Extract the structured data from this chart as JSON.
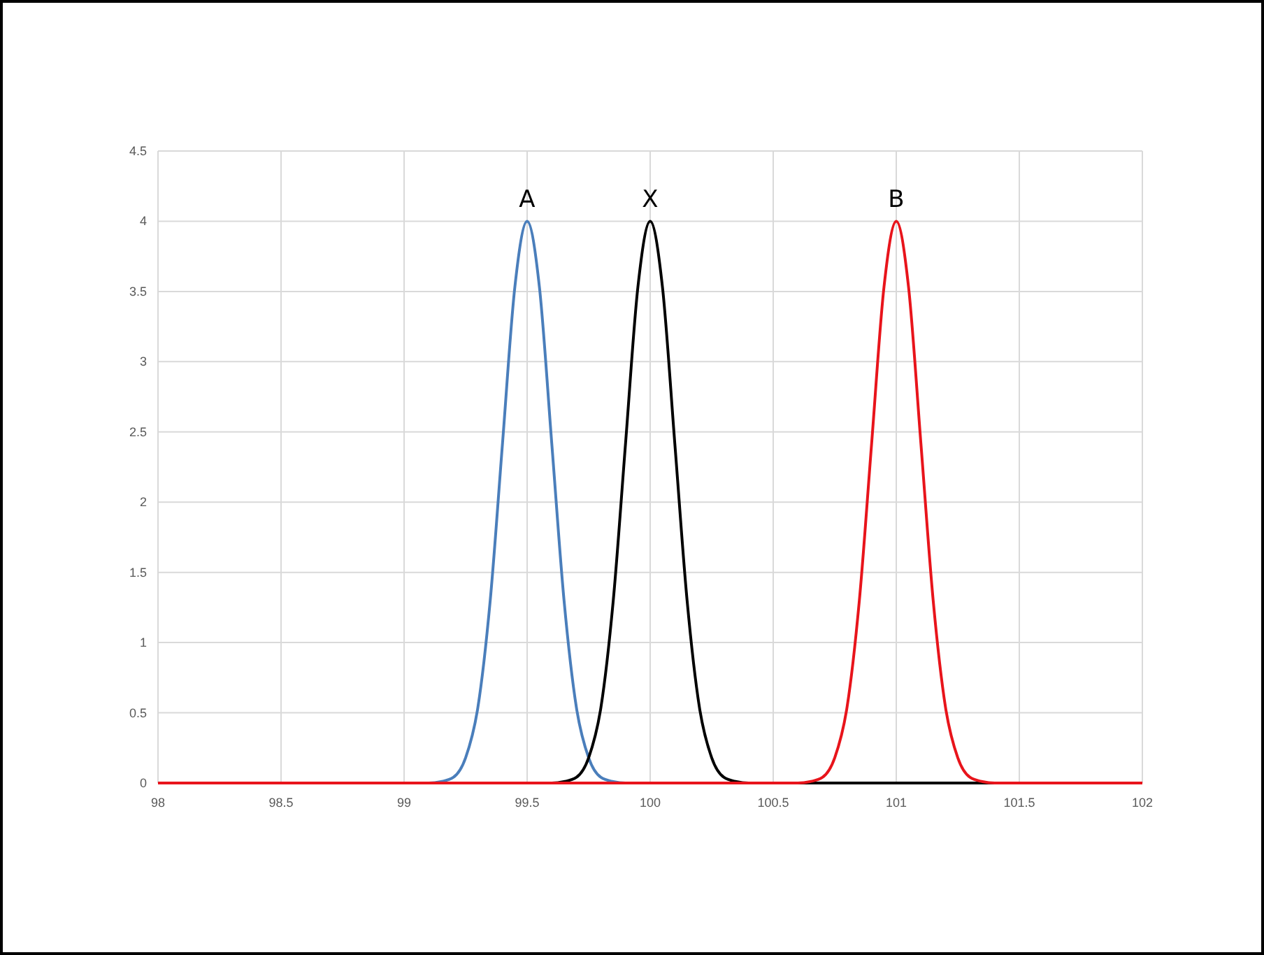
{
  "chart_data": {
    "type": "line",
    "xlim": [
      98,
      102
    ],
    "xticks": [
      98,
      98.5,
      99,
      99.5,
      100,
      100.5,
      101,
      101.5,
      102
    ],
    "ylim": [
      0,
      4.5
    ],
    "yticks": [
      0,
      0.5,
      1,
      1.5,
      2,
      2.5,
      3,
      3.5,
      4,
      4.5
    ],
    "grid": true,
    "marker": "none",
    "line_style": "solid",
    "series": [
      {
        "name": "A",
        "color": "#4a7ebb",
        "x": [
          98,
          99.1,
          99.15,
          99.2,
          99.25,
          99.3,
          99.35,
          99.4,
          99.45,
          99.5,
          99.55,
          99.6,
          99.65,
          99.7,
          99.75,
          99.8,
          99.85,
          99.9,
          102
        ],
        "values": [
          0,
          0,
          0.01,
          0.04,
          0.18,
          0.54,
          1.3,
          2.42,
          3.53,
          4,
          3.53,
          2.42,
          1.3,
          0.54,
          0.18,
          0.04,
          0.01,
          0,
          0
        ]
      },
      {
        "name": "X",
        "color": "#000000",
        "x": [
          98,
          99.6,
          99.65,
          99.7,
          99.75,
          99.8,
          99.85,
          99.9,
          99.95,
          100,
          100.05,
          100.1,
          100.15,
          100.2,
          100.25,
          100.3,
          100.35,
          100.4,
          102
        ],
        "values": [
          0,
          0,
          0.01,
          0.04,
          0.18,
          0.54,
          1.3,
          2.42,
          3.53,
          4,
          3.53,
          2.42,
          1.3,
          0.54,
          0.18,
          0.04,
          0.01,
          0,
          0
        ]
      },
      {
        "name": "B",
        "color": "#e8141b",
        "x": [
          98,
          100.6,
          100.65,
          100.7,
          100.75,
          100.8,
          100.85,
          100.9,
          100.95,
          101,
          101.05,
          101.1,
          101.15,
          101.2,
          101.25,
          101.3,
          101.35,
          101.4,
          102
        ],
        "values": [
          0,
          0,
          0.01,
          0.04,
          0.18,
          0.54,
          1.3,
          2.42,
          3.53,
          4,
          3.53,
          2.42,
          1.3,
          0.54,
          0.18,
          0.04,
          0.01,
          0,
          0
        ]
      }
    ]
  }
}
